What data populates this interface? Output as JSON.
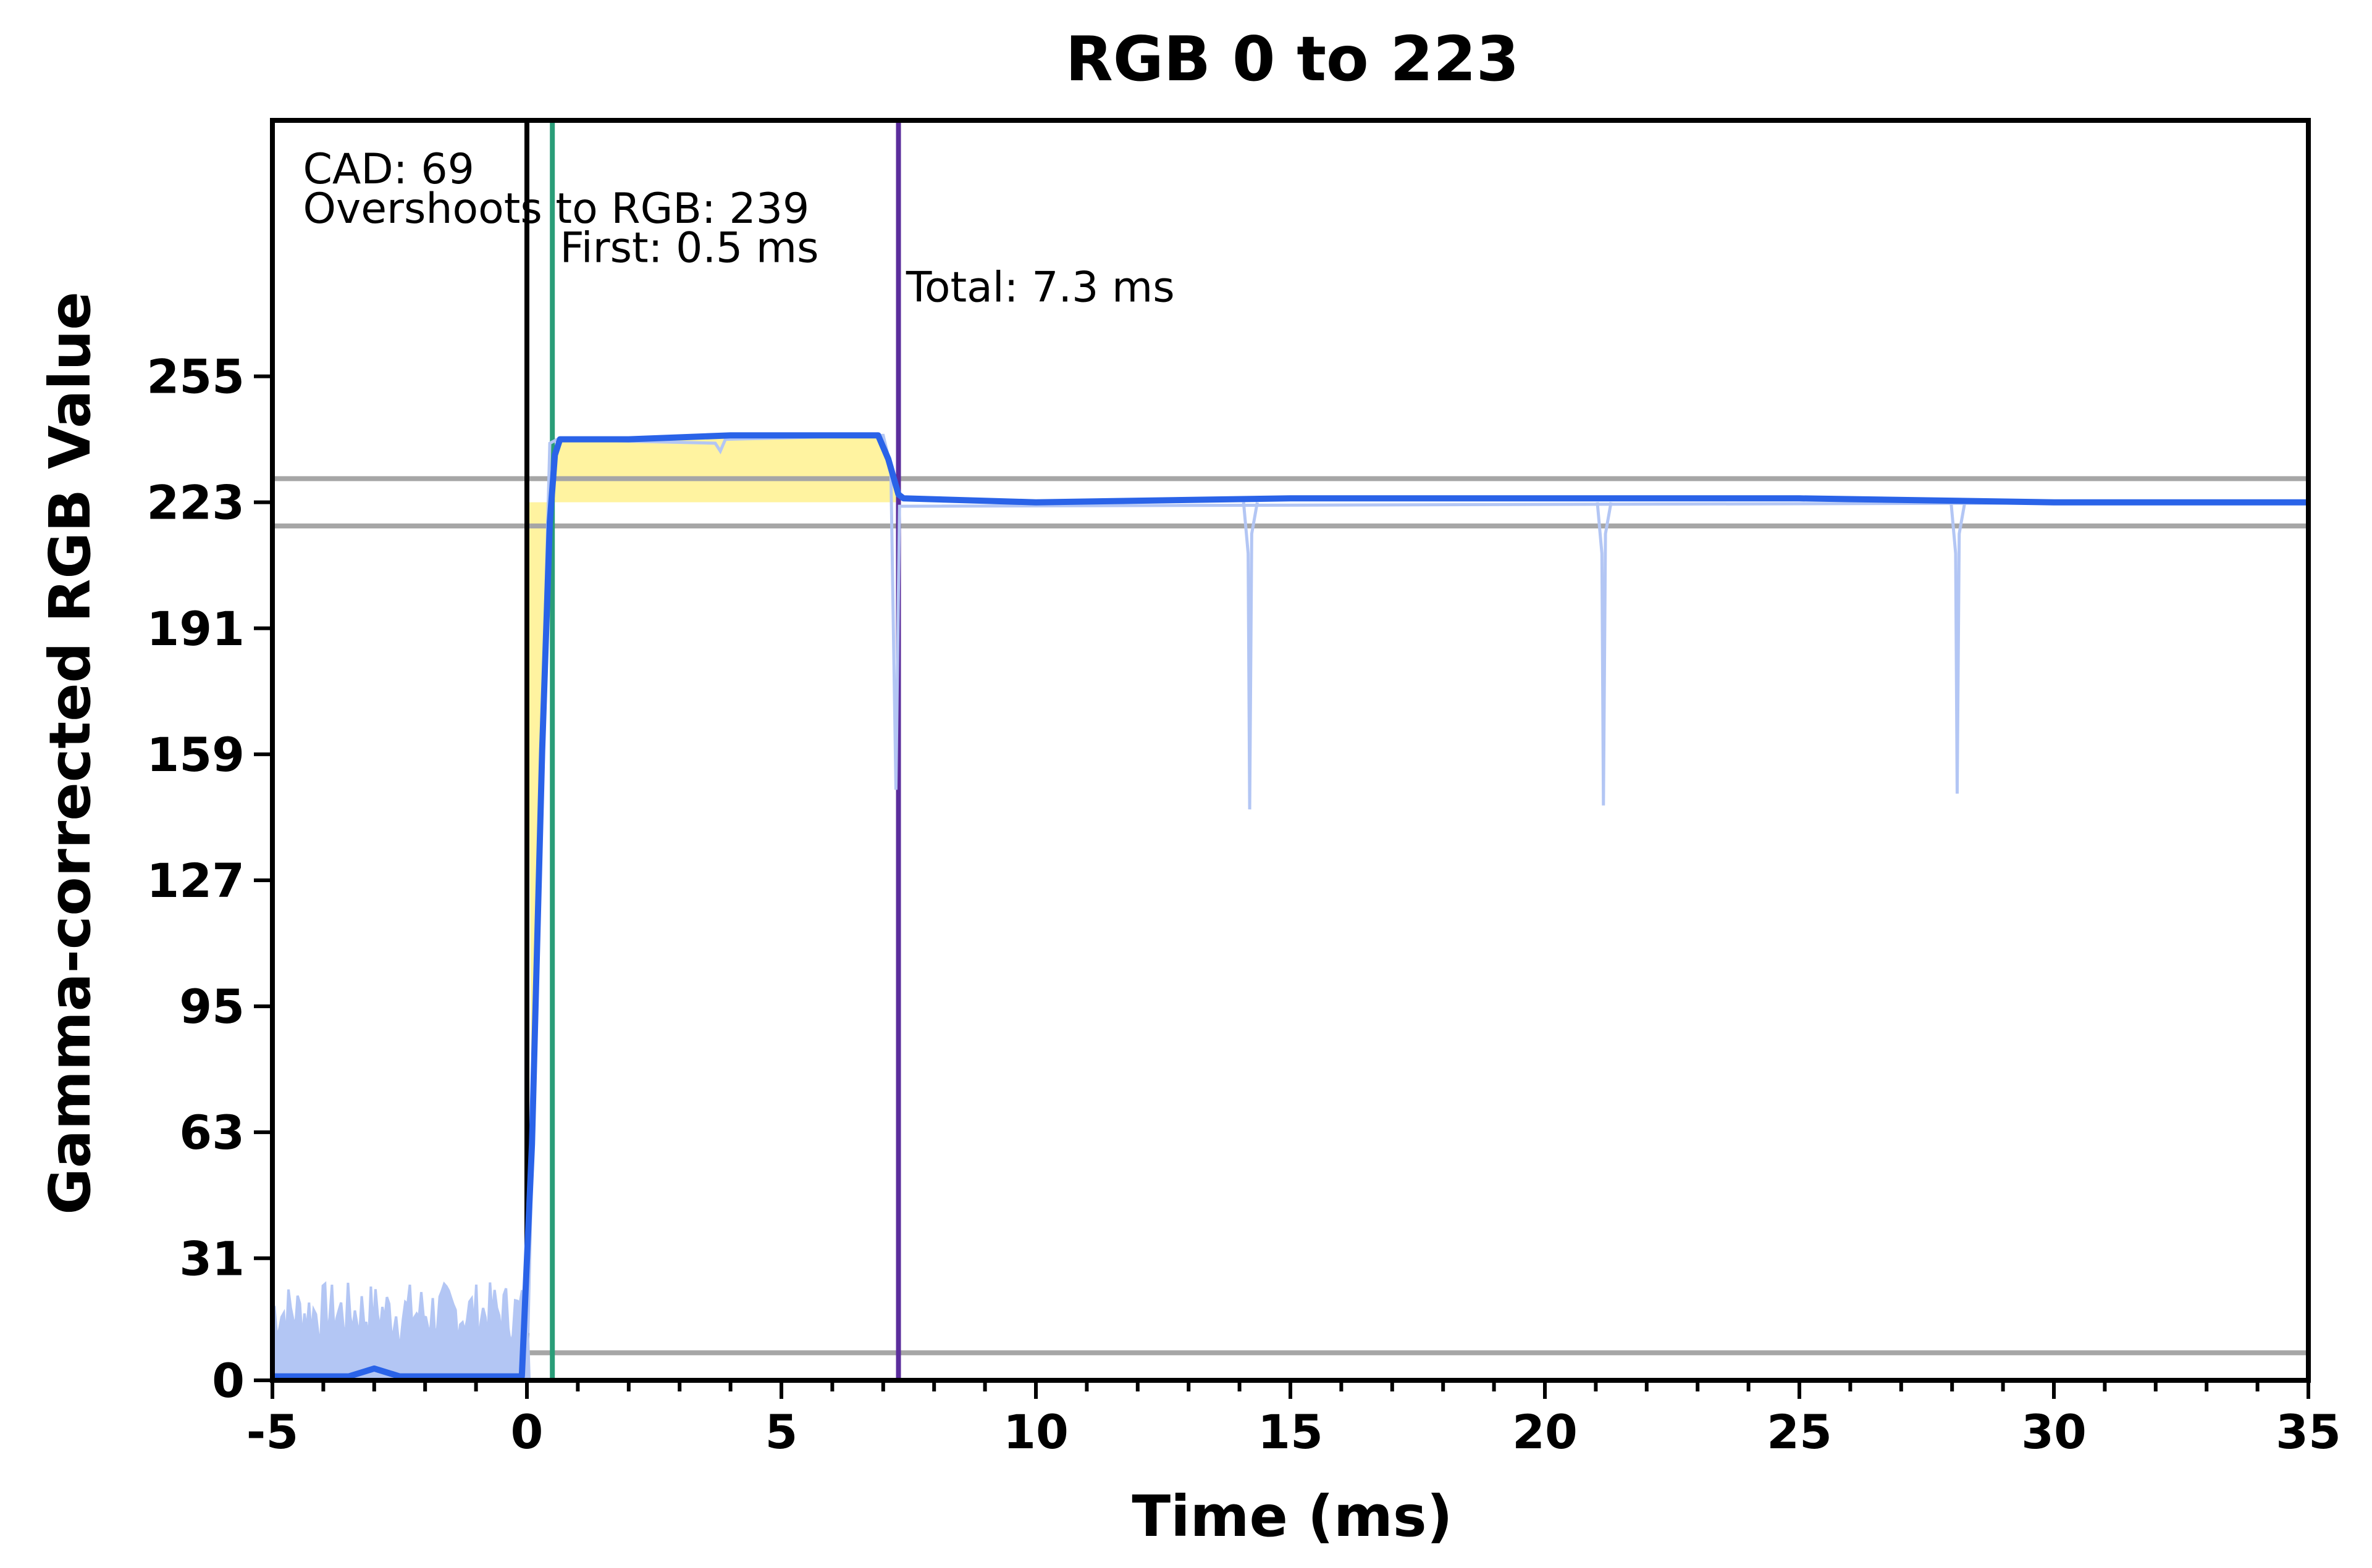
{
  "chart_data": {
    "type": "line",
    "title": "RGB 0 to 223",
    "xlabel": "Time (ms)",
    "ylabel": "Gamma-corrected RGB Value",
    "xlim": [
      -5,
      35
    ],
    "ylim": [
      0,
      320
    ],
    "x_ticks": [
      -5,
      0,
      5,
      10,
      15,
      20,
      25,
      30,
      35
    ],
    "y_ticks": [
      0,
      31,
      63,
      95,
      127,
      159,
      191,
      223,
      255
    ],
    "grid": false,
    "legend": "none",
    "reference_lines": {
      "horizontal": [
        7,
        217,
        229
      ],
      "vertical": [
        {
          "x": 0,
          "color": "#000000"
        },
        {
          "x": 0.5,
          "color": "#2a9d78"
        },
        {
          "x": 7.3,
          "color": "#5b2d9c"
        }
      ]
    },
    "annotations": [
      {
        "text": "CAD: 69",
        "x": -4.4,
        "y": 304
      },
      {
        "text": "Overshoots to RGB: 239",
        "x": -4.4,
        "y": 294
      },
      {
        "text": "First: 0.5 ms",
        "x": 0.65,
        "y": 284
      },
      {
        "text": "Total: 7.3 ms",
        "x": 7.45,
        "y": 274
      }
    ],
    "series": [
      {
        "style": "smoothed",
        "color": "#2a63e8",
        "x": [
          -5,
          -3.5,
          -3,
          -2.5,
          -1,
          -0.1,
          0.1,
          0.3,
          0.45,
          0.55,
          0.65,
          2,
          4,
          6,
          6.9,
          7.1,
          7.3,
          7.4,
          10,
          15,
          20,
          25,
          30,
          35
        ],
        "y": [
          1,
          1,
          3,
          1,
          1,
          1,
          60,
          160,
          218,
          235,
          239,
          239,
          240,
          240,
          240,
          234,
          225,
          224,
          223,
          224,
          224,
          224,
          223,
          223
        ]
      },
      {
        "style": "raw",
        "color": "#b3c6f4",
        "spikes": [
          {
            "x": 14.2,
            "y": 145
          },
          {
            "x": 21.15,
            "y": 146
          },
          {
            "x": 28.1,
            "y": 149
          }
        ]
      }
    ],
    "fill_regions": [
      {
        "kind": "overshoot",
        "color": "#fff3a0",
        "x_from": 0,
        "x_to": 7.3,
        "baseline": 223
      }
    ]
  }
}
